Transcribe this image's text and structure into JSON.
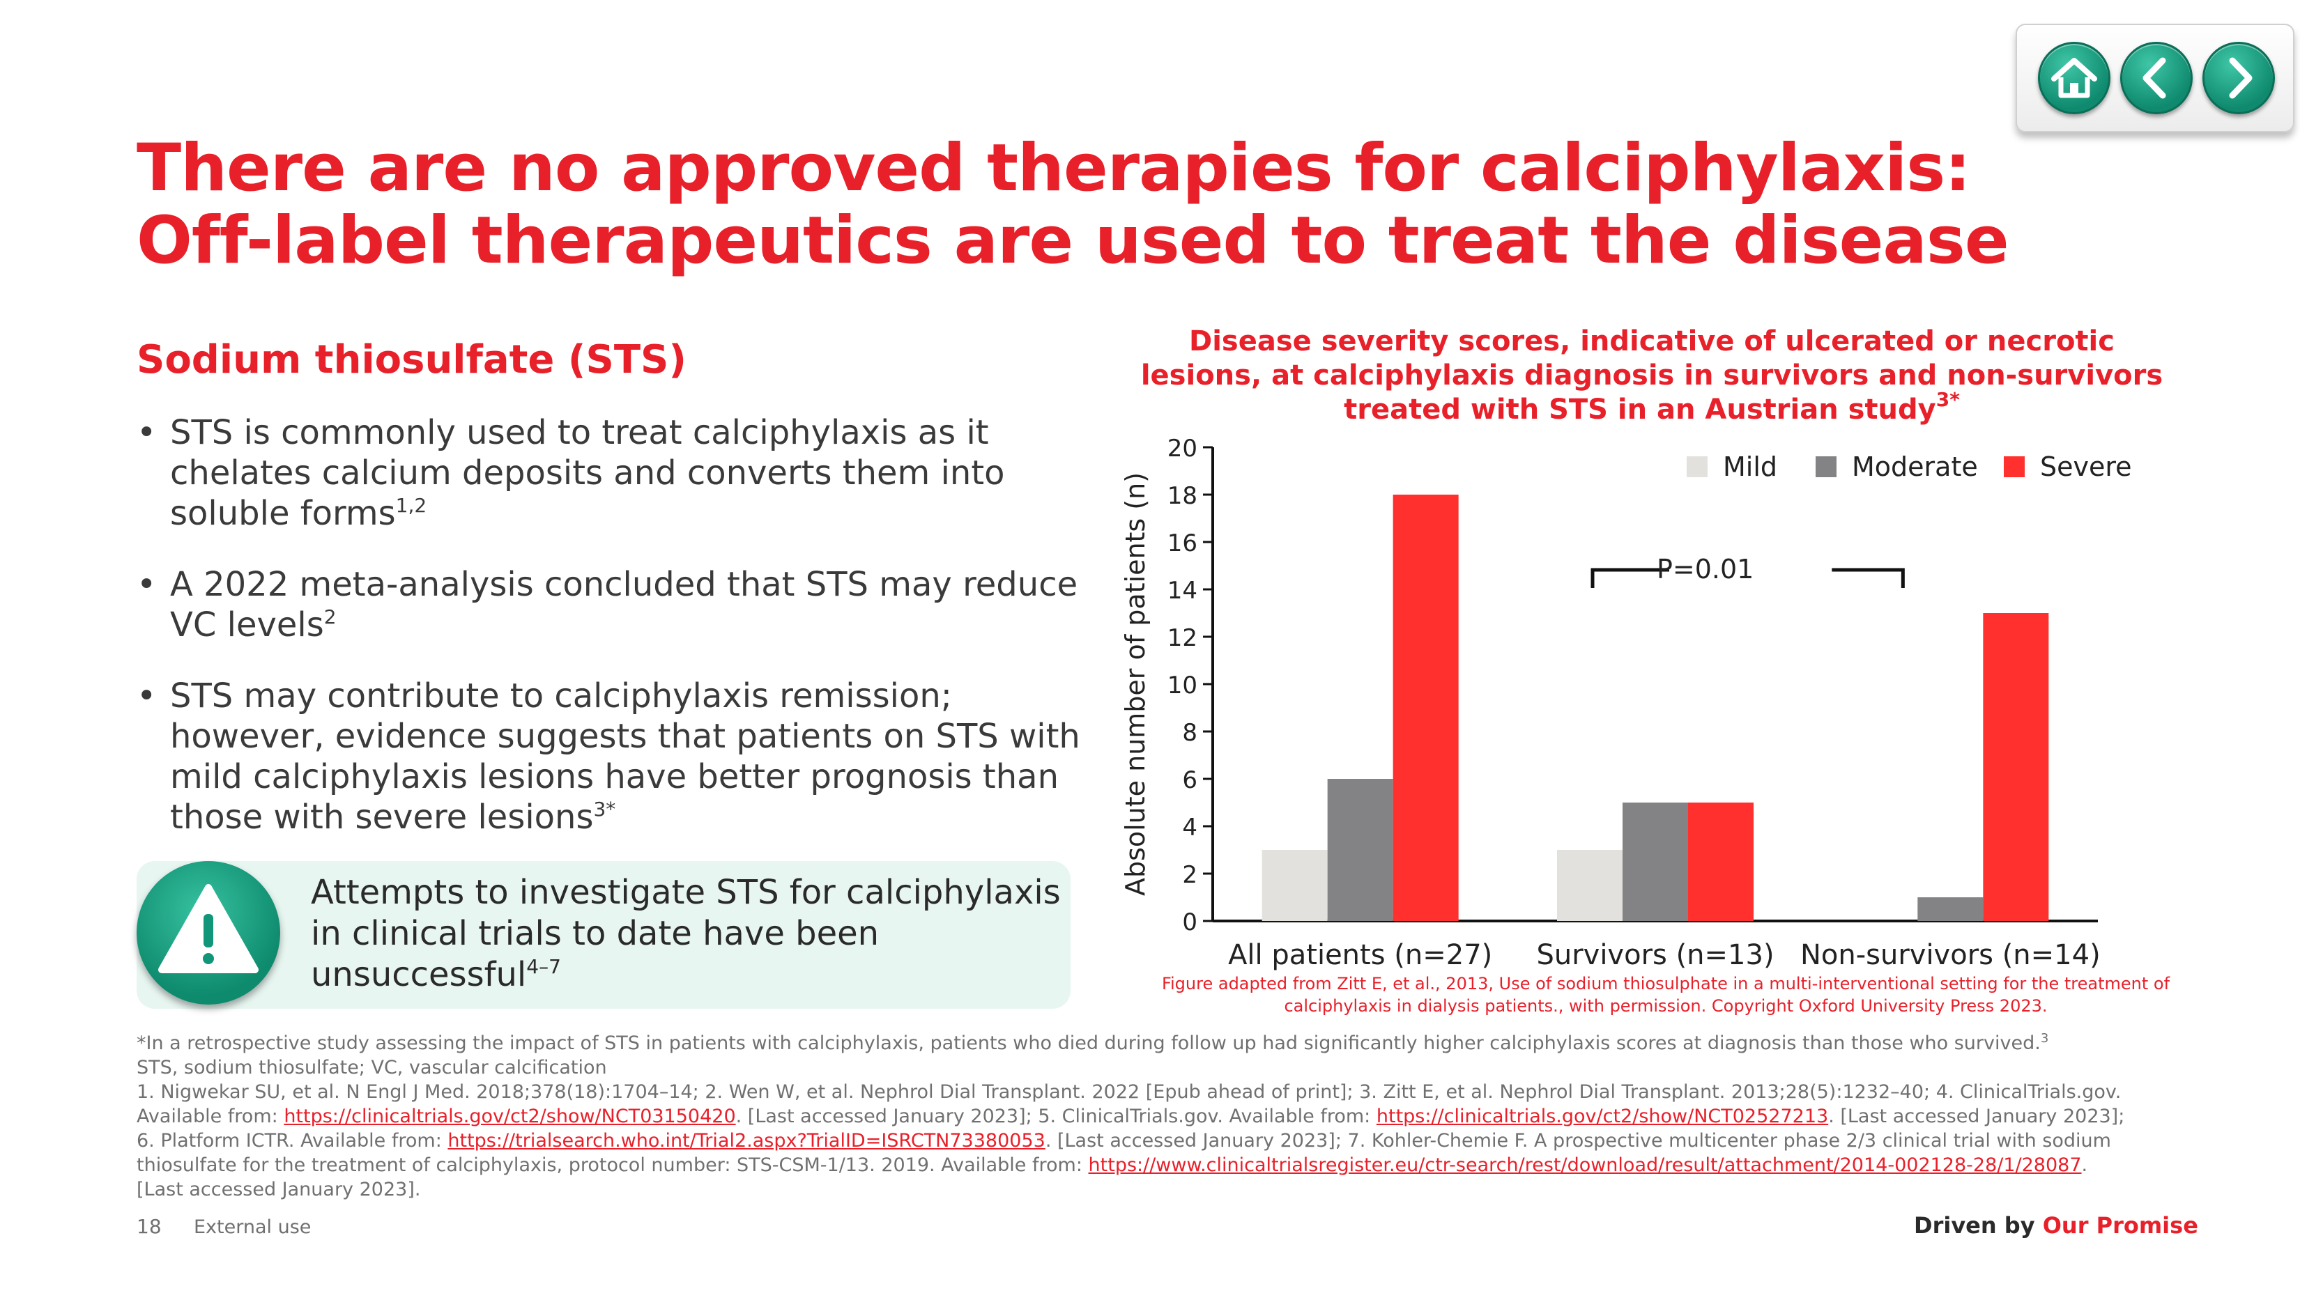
{
  "nav": {
    "home_icon": "home-icon",
    "back_icon": "chevron-left-icon",
    "forward_icon": "chevron-right-icon"
  },
  "title": {
    "line1": "There are no approved therapies for calciphylaxis:",
    "line2": "Off-label therapeutics are used to treat the disease"
  },
  "section": {
    "heading": "Sodium thiosulfate (STS)",
    "bullets": [
      {
        "text": "STS is commonly used to treat calciphylaxis as it chelates calcium deposits and converts them into soluble forms",
        "sup": "1,2"
      },
      {
        "text": "A 2022 meta-analysis concluded that STS may reduce VC levels",
        "sup": "2"
      },
      {
        "text": "STS may contribute to calciphylaxis remission; however, evidence suggests that patients on STS with mild calciphylaxis lesions have better prognosis than those with severe lesions",
        "sup": "3*"
      }
    ]
  },
  "callout": {
    "icon": "warning-icon",
    "text": "Attempts to investigate STS for calciphylaxis in clinical trials to date have been unsuccessful",
    "sup": "4–7"
  },
  "chart_data": {
    "type": "bar",
    "title": "Disease severity scores, indicative of ulcerated or necrotic lesions, at calciphylaxis diagnosis in survivors and non-survivors treated with STS in an Austrian study",
    "title_sup": "3*",
    "categories": [
      "All patients (n=27)",
      "Survivors (n=13)",
      "Non-survivors (n=14)"
    ],
    "series": [
      {
        "name": "Mild",
        "color": "#e3e1dd",
        "values": [
          3,
          3,
          0
        ]
      },
      {
        "name": "Moderate",
        "color": "#838385",
        "values": [
          6,
          5,
          1
        ]
      },
      {
        "name": "Severe",
        "color": "#ff302d",
        "values": [
          18,
          5,
          13
        ]
      }
    ],
    "ylabel": "Absolute number of patients (n)",
    "xlabel": "",
    "ylim": [
      0,
      20
    ],
    "yticks": [
      "0",
      "2",
      "4",
      "6",
      "8",
      "10",
      "12",
      "14",
      "16",
      "18",
      "20"
    ],
    "legend_position": "top-right",
    "grid": false,
    "annotation": "P=0.01"
  },
  "figure_caption": "Figure adapted from Zitt E, et al., 2013, Use of sodium thiosulphate in a multi-interventional setting for the treatment of calciphylaxis in dialysis patients., with permission. Copyright Oxford University Press 2023.",
  "footnotes": {
    "note1": "*In a retrospective study assessing the impact of STS in patients with calciphylaxis, patients who died during follow up had significantly higher calciphylaxis scores at diagnosis than those who survived.",
    "note1_sup": "3",
    "note2": "STS, sodium thiosulfate; VC, vascular calcification",
    "ref_a": "1. Nigwekar SU, et al. N Engl J Med. 2018;378(18):1704–14; 2. Wen W, et al. Nephrol Dial Transplant. 2022 [Epub ahead of print]; 3. Zitt E, et al. Nephrol Dial Transplant. 2013;28(5):1232–40; 4. ClinicalTrials.gov.",
    "ref_b": "Available from: ",
    "link1": "https://clinicaltrials.gov/ct2/show/NCT03150420",
    "ref_c": ". [Last accessed January 2023]; 5. ClinicalTrials.gov. Available from: ",
    "link2": "https://clinicaltrials.gov/ct2/show/NCT02527213",
    "ref_d": ". [Last accessed January 2023];",
    "ref_e": "6. Platform ICTR. Available from: ",
    "link3": "https://trialsearch.who.int/Trial2.aspx?TrialID=ISRCTN73380053",
    "ref_f": ". [Last accessed January 2023]; 7. Kohler-Chemie F. A prospective multicenter phase 2/3 clinical trial with sodium",
    "ref_g": "thiosulfate for the treatment of calciphylaxis, protocol number: STS-CSM-1/13. 2019. Available from: ",
    "link4": "https://www.clinicaltrialsregister.eu/ctr-search/rest/download/result/attachment/2014-002128-28/1/28087",
    "ref_h": ".",
    "ref_i": "[Last accessed January 2023]."
  },
  "footer": {
    "page_number": "18",
    "classification": "External use",
    "tagline_prefix": "Driven by ",
    "tagline_brand": "Our Promise"
  }
}
